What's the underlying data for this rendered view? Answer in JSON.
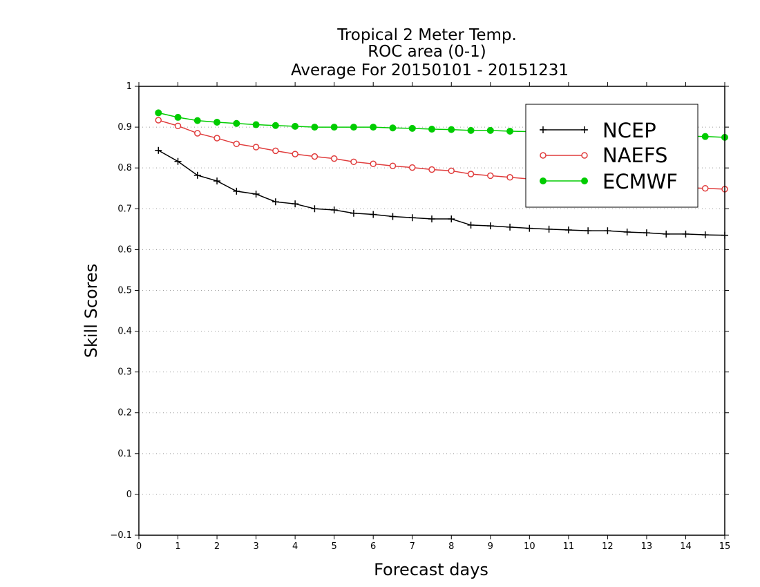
{
  "chart_data": {
    "type": "line",
    "title": [
      "Tropical 2 Meter Temp.",
      "ROC area (0-1)",
      "Average For 20150101 - 20151231"
    ],
    "xlabel": "Forecast days",
    "ylabel": "Skill Scores",
    "xlim": [
      0,
      15
    ],
    "ylim": [
      -0.1,
      1
    ],
    "xticks": [
      "0",
      "1",
      "2",
      "3",
      "4",
      "5",
      "6",
      "7",
      "8",
      "9",
      "10",
      "11",
      "12",
      "13",
      "14",
      "15"
    ],
    "yticks": [
      "−0.1",
      "0",
      "0.1",
      "0.2",
      "0.3",
      "0.4",
      "0.5",
      "0.6",
      "0.7",
      "0.8",
      "0.9",
      "1"
    ],
    "grid": true,
    "legend_position": "top-right",
    "x": [
      0.5,
      1.0,
      1.5,
      2.0,
      2.5,
      3.0,
      3.5,
      4.0,
      4.5,
      5.0,
      5.5,
      6.0,
      6.5,
      7.0,
      7.5,
      8.0,
      8.5,
      9.0,
      9.5,
      10.0,
      10.5,
      11.0,
      11.5,
      12.0,
      12.5,
      13.0,
      13.5,
      14.0,
      14.5,
      15.0
    ],
    "series": [
      {
        "name": "NCEP",
        "color": "#000000",
        "marker": "plus",
        "values": [
          0.843,
          0.816,
          0.782,
          0.768,
          0.743,
          0.736,
          0.717,
          0.712,
          0.7,
          0.697,
          0.689,
          0.686,
          0.681,
          0.678,
          0.675,
          0.675,
          0.66,
          0.658,
          0.655,
          0.652,
          0.65,
          0.648,
          0.646,
          0.646,
          0.643,
          0.641,
          0.638,
          0.638,
          0.636,
          0.635
        ]
      },
      {
        "name": "NAEFS",
        "color": "#e03c3c",
        "marker": "open-circle",
        "values": [
          0.917,
          0.903,
          0.885,
          0.873,
          0.859,
          0.851,
          0.842,
          0.834,
          0.828,
          0.823,
          0.815,
          0.81,
          0.805,
          0.801,
          0.796,
          0.793,
          0.785,
          0.781,
          0.777,
          0.773,
          0.77,
          0.767,
          0.764,
          0.762,
          0.759,
          0.756,
          0.754,
          0.752,
          0.75,
          0.748
        ]
      },
      {
        "name": "ECMWF",
        "color": "#00cc00",
        "marker": "filled-circle",
        "values": [
          0.935,
          0.924,
          0.916,
          0.912,
          0.909,
          0.906,
          0.904,
          0.902,
          0.9,
          0.9,
          0.9,
          0.9,
          0.898,
          0.897,
          0.895,
          0.894,
          0.892,
          0.892,
          0.89,
          0.889,
          0.888,
          0.887,
          0.885,
          0.884,
          0.883,
          0.882,
          0.88,
          0.878,
          0.877,
          0.875
        ]
      }
    ]
  }
}
